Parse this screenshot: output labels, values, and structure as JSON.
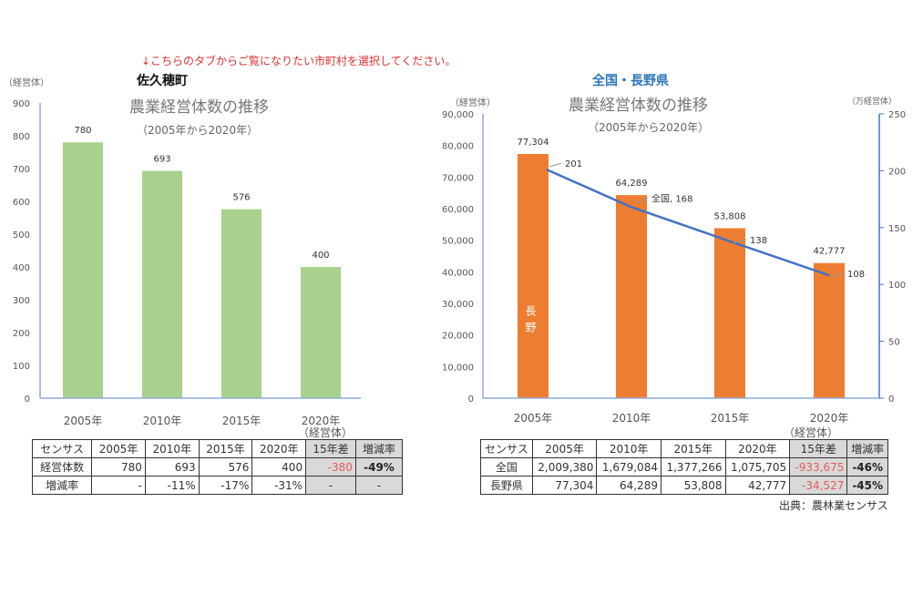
{
  "notice": "↓こちらのタブからご覧になりたい市町村を選択してください。",
  "source": "出典：農林業センサス",
  "colors": {
    "bar_left": "#a9d18e",
    "bar_right": "#ed7d31",
    "line": "#4472c4",
    "notice": "#e03030",
    "title_right": "#2e75b6"
  },
  "chart_data": [
    {
      "type": "bar",
      "heading": "佐久穂町",
      "title": "農業経営体数の推移",
      "subtitle": "（2005年から2020年）",
      "ylabel": "（経営体）",
      "xunit": "（経営体）",
      "categories": [
        "2005年",
        "2010年",
        "2015年",
        "2020年"
      ],
      "values": [
        780,
        693,
        576,
        400
      ],
      "data_labels": [
        "780",
        "693",
        "576",
        "400"
      ],
      "ylim": [
        0,
        900
      ],
      "yticks": [
        "0",
        "100",
        "200",
        "300",
        "400",
        "500",
        "600",
        "700",
        "800",
        "900"
      ],
      "grid": false
    },
    {
      "type": "bar+line",
      "heading": "全国・長野県",
      "title": "農業経営体数の推移",
      "subtitle": "（2005年から2020年）",
      "ylabel": "（経営体）",
      "y2label": "（万経営体）",
      "xunit": "（経営体）",
      "categories": [
        "2005年",
        "2010年",
        "2015年",
        "2020年"
      ],
      "bar_series": {
        "name": "長野",
        "values": [
          77304,
          64289,
          53808,
          42777
        ],
        "data_labels": [
          "77,304",
          "64,289",
          "53,808",
          "42,777"
        ]
      },
      "line_series": {
        "name": "全国",
        "values": [
          201,
          168,
          138,
          108
        ],
        "data_labels": [
          "201",
          "全国, 168",
          "138",
          "108"
        ]
      },
      "ylim": [
        0,
        90000
      ],
      "y2lim": [
        0,
        250
      ],
      "yticks": [
        "0",
        "10,000",
        "20,000",
        "30,000",
        "40,000",
        "50,000",
        "60,000",
        "70,000",
        "80,000",
        "90,000"
      ],
      "y2ticks": [
        "0",
        "50",
        "100",
        "150",
        "200",
        "250"
      ],
      "grid": false
    }
  ],
  "left_table": {
    "header": [
      "センサス",
      "2005年",
      "2010年",
      "2015年",
      "2020年",
      "15年差",
      "増減率"
    ],
    "rows": [
      [
        "経営体数",
        "780",
        "693",
        "576",
        "400",
        "-380",
        "-49%"
      ],
      [
        "増減率",
        "-",
        "-11%",
        "-17%",
        "-31%",
        "-",
        "-"
      ]
    ]
  },
  "right_table": {
    "header": [
      "センサス",
      "2005年",
      "2010年",
      "2015年",
      "2020年",
      "15年差",
      "増減率"
    ],
    "rows": [
      [
        "全国",
        "2,009,380",
        "1,679,084",
        "1,377,266",
        "1,075,705",
        "-933,675",
        "-46%"
      ],
      [
        "長野県",
        "77,304",
        "64,289",
        "53,808",
        "42,777",
        "-34,527",
        "-45%"
      ]
    ]
  }
}
